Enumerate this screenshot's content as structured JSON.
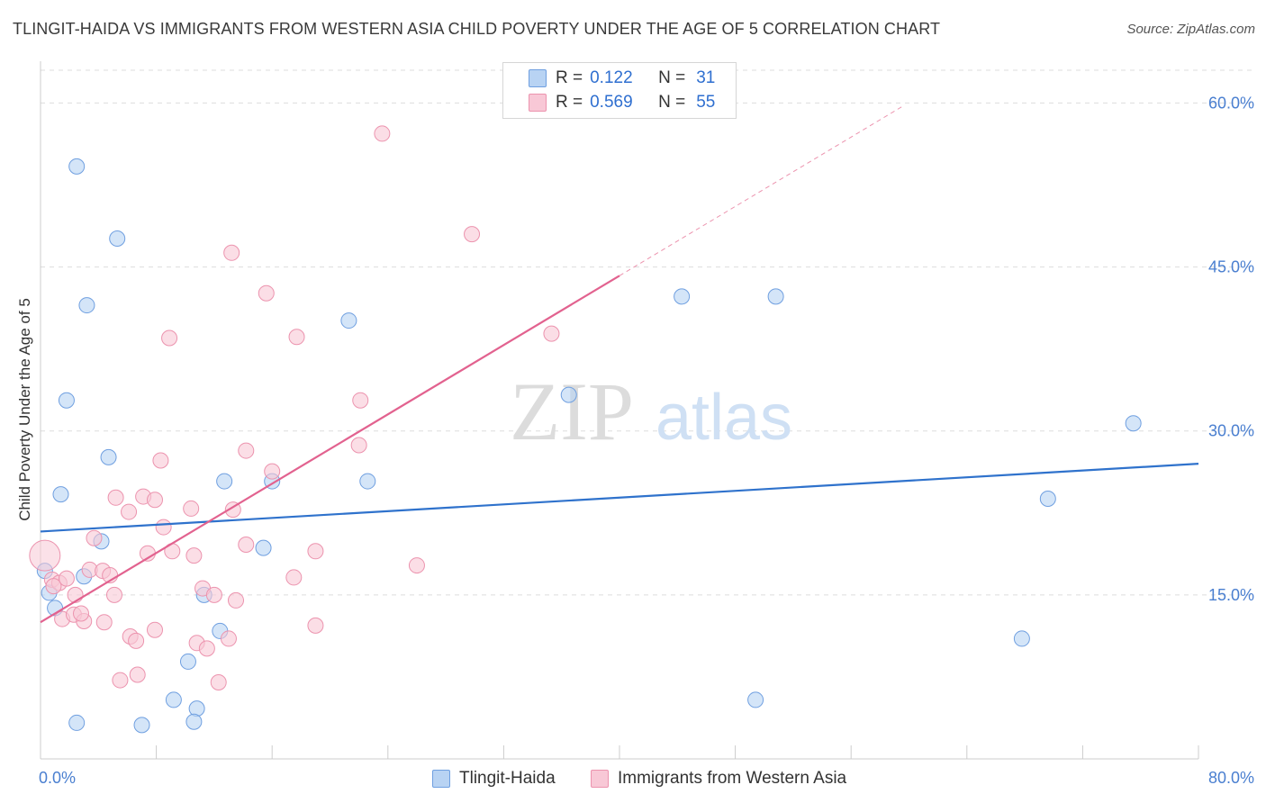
{
  "title": "TLINGIT-HAIDA VS IMMIGRANTS FROM WESTERN ASIA CHILD POVERTY UNDER THE AGE OF 5 CORRELATION CHART",
  "source": "Source: ZipAtlas.com",
  "watermark": {
    "zip": "ZIP",
    "atlas": "atlas"
  },
  "legend": {
    "r_label": "R =",
    "n_label": "N =",
    "series": [
      {
        "r": "0.122",
        "n": "31"
      },
      {
        "r": "0.569",
        "n": "55"
      }
    ]
  },
  "bottom_legend": [
    "Tlingit-Haida",
    "Immigrants from Western Asia"
  ],
  "colors": {
    "blue_fill": "#b8d3f3",
    "blue_stroke": "#6f9fe0",
    "blue_line": "#2f72cc",
    "pink_fill": "#f8c8d6",
    "pink_stroke": "#ec93ae",
    "pink_line": "#e2628f",
    "grid": "#dddddd",
    "axis_text": "#4a7fd0"
  },
  "chart_data": {
    "type": "scatter",
    "title": "TLINGIT-HAIDA VS IMMIGRANTS FROM WESTERN ASIA CHILD POVERTY UNDER THE AGE OF 5 CORRELATION CHART",
    "xlabel": "",
    "ylabel": "Child Poverty Under the Age of 5",
    "xlim": [
      0,
      80
    ],
    "ylim": [
      0,
      63
    ],
    "x_tick_labels": [
      "0.0%",
      "80.0%"
    ],
    "y_ticks": [
      15,
      30,
      45,
      60
    ],
    "y_tick_labels": [
      "15.0%",
      "30.0%",
      "45.0%",
      "60.0%"
    ],
    "series": [
      {
        "name": "Tlingit-Haida",
        "color": "#6f9fe0",
        "points": [
          [
            2.5,
            54.2
          ],
          [
            5.3,
            47.6
          ],
          [
            3.2,
            41.5
          ],
          [
            1.8,
            32.8
          ],
          [
            4.7,
            27.6
          ],
          [
            1.4,
            24.2
          ],
          [
            4.2,
            19.9
          ],
          [
            3.0,
            16.7
          ],
          [
            1.0,
            13.8
          ],
          [
            0.6,
            15.2
          ],
          [
            0.3,
            17.2
          ],
          [
            12.7,
            25.4
          ],
          [
            16.0,
            25.4
          ],
          [
            15.4,
            19.3
          ],
          [
            11.3,
            15.0
          ],
          [
            12.4,
            11.7
          ],
          [
            10.2,
            8.9
          ],
          [
            9.2,
            5.4
          ],
          [
            10.8,
            4.6
          ],
          [
            10.6,
            3.4
          ],
          [
            7.0,
            3.1
          ],
          [
            2.5,
            3.3
          ],
          [
            21.3,
            40.1
          ],
          [
            22.6,
            25.4
          ],
          [
            36.5,
            33.3
          ],
          [
            44.3,
            42.3
          ],
          [
            50.8,
            42.3
          ],
          [
            49.4,
            5.4
          ],
          [
            75.5,
            30.7
          ],
          [
            69.6,
            23.8
          ],
          [
            67.8,
            11.0
          ]
        ]
      },
      {
        "name": "Immigrants from Western Asia",
        "color": "#ec93ae",
        "points": [
          [
            0.3,
            18.6
          ],
          [
            0.8,
            16.4
          ],
          [
            1.3,
            16.1
          ],
          [
            1.8,
            16.5
          ],
          [
            0.9,
            15.8
          ],
          [
            2.4,
            15.0
          ],
          [
            3.4,
            17.3
          ],
          [
            4.3,
            17.2
          ],
          [
            4.8,
            16.8
          ],
          [
            3.7,
            20.2
          ],
          [
            5.1,
            15.0
          ],
          [
            1.5,
            12.8
          ],
          [
            2.3,
            13.2
          ],
          [
            3.0,
            12.6
          ],
          [
            4.4,
            12.5
          ],
          [
            2.8,
            13.3
          ],
          [
            6.1,
            22.6
          ],
          [
            5.2,
            23.9
          ],
          [
            7.1,
            24.0
          ],
          [
            7.9,
            23.7
          ],
          [
            8.3,
            27.3
          ],
          [
            8.5,
            21.2
          ],
          [
            7.4,
            18.8
          ],
          [
            9.1,
            19.0
          ],
          [
            10.4,
            22.9
          ],
          [
            10.6,
            18.6
          ],
          [
            11.2,
            15.6
          ],
          [
            12.0,
            15.0
          ],
          [
            7.9,
            11.8
          ],
          [
            6.2,
            11.2
          ],
          [
            6.6,
            10.8
          ],
          [
            10.8,
            10.6
          ],
          [
            11.5,
            10.1
          ],
          [
            13.0,
            11.0
          ],
          [
            6.7,
            7.7
          ],
          [
            5.5,
            7.2
          ],
          [
            12.3,
            7.0
          ],
          [
            13.5,
            14.5
          ],
          [
            13.3,
            22.8
          ],
          [
            14.2,
            28.2
          ],
          [
            14.2,
            19.6
          ],
          [
            16.0,
            26.3
          ],
          [
            17.5,
            16.6
          ],
          [
            19.0,
            19.0
          ],
          [
            19.0,
            12.2
          ],
          [
            22.0,
            28.7
          ],
          [
            22.1,
            32.8
          ],
          [
            26.0,
            17.7
          ],
          [
            17.7,
            38.6
          ],
          [
            15.6,
            42.6
          ],
          [
            13.2,
            46.3
          ],
          [
            8.9,
            38.5
          ],
          [
            23.6,
            57.2
          ],
          [
            29.8,
            48.0
          ],
          [
            35.3,
            38.9
          ]
        ]
      }
    ],
    "trendlines": [
      {
        "series": "Tlingit-Haida",
        "x": [
          0,
          80
        ],
        "y": [
          20.8,
          27.0
        ]
      },
      {
        "series": "Immigrants from Western Asia",
        "x": [
          0,
          40
        ],
        "y": [
          12.5,
          44.2
        ],
        "dashed_extension_to_x": 59.5
      }
    ]
  }
}
